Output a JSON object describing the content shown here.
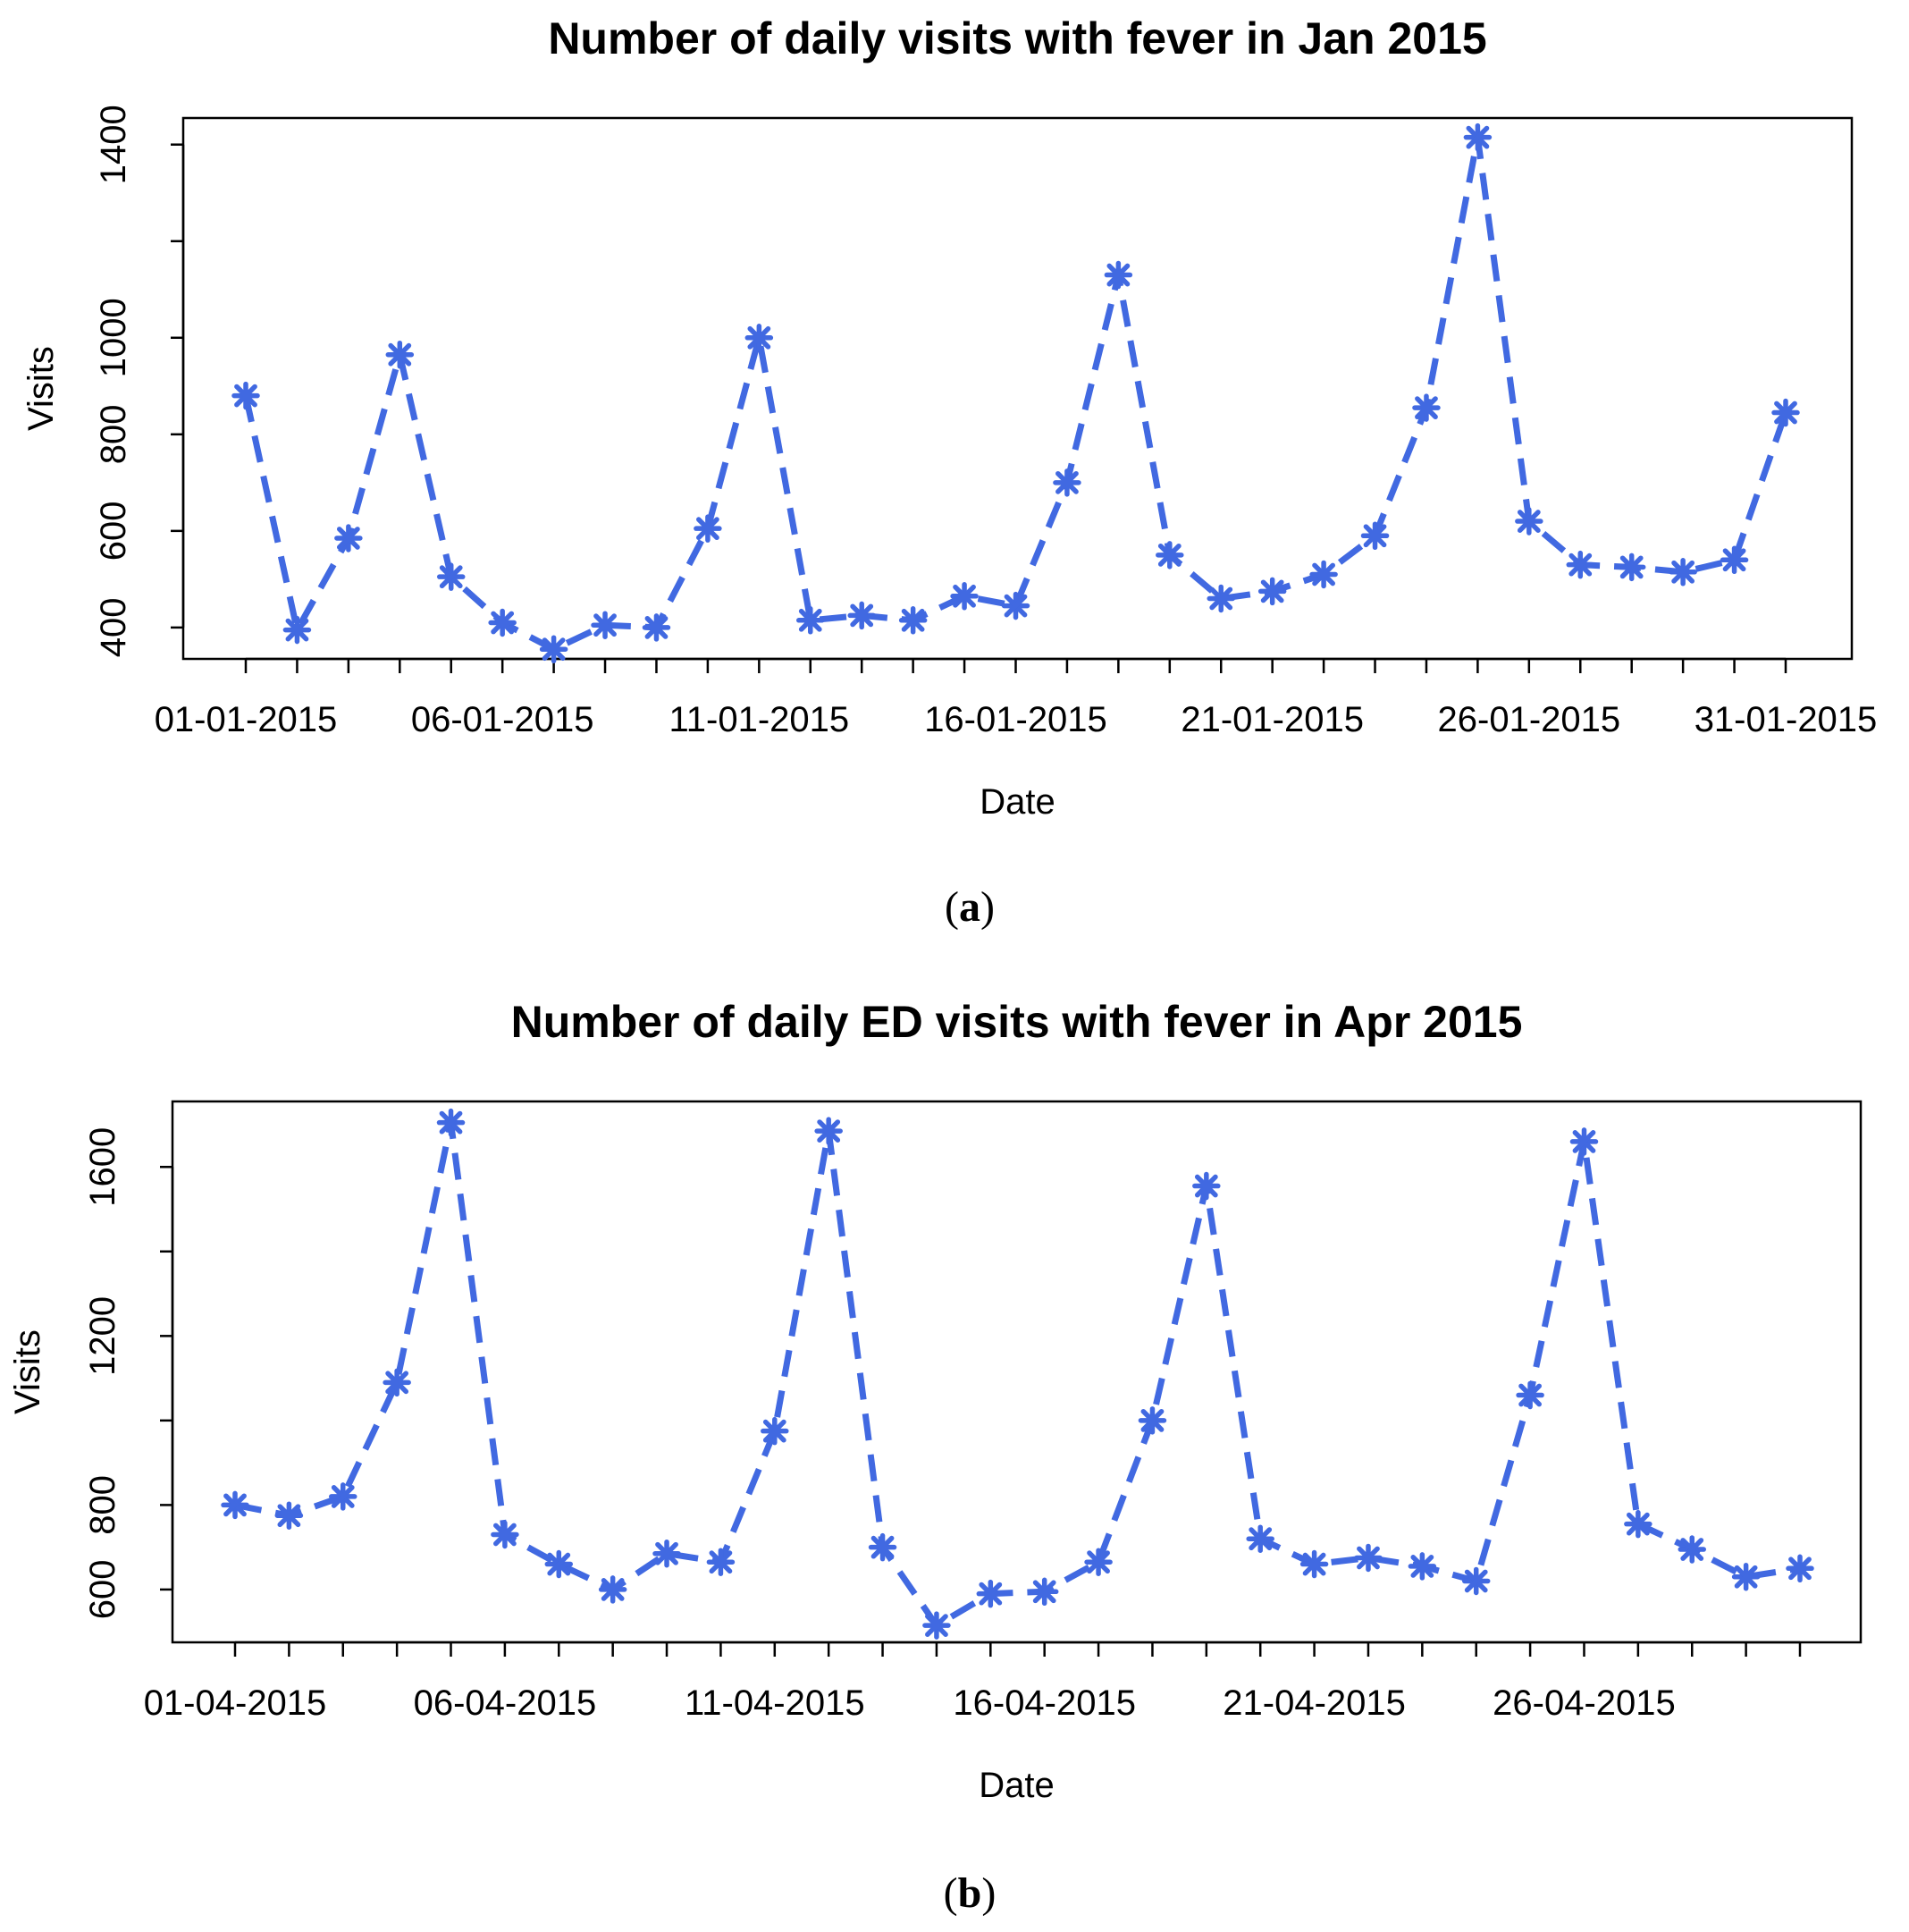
{
  "colors": {
    "series": "#4169E1",
    "axis": "#000000",
    "background": "#FFFFFF"
  },
  "charts": [
    {
      "panel_label": "a",
      "chart_data": {
        "type": "line",
        "title": "Number of daily visits with fever in Jan 2015",
        "xlabel": "Date",
        "ylabel": "Visits",
        "ylim": [
          335,
          1455
        ],
        "yticks": [
          400,
          600,
          800,
          1000,
          1200,
          1400
        ],
        "ytick_labels": [
          "400",
          "600",
          "800",
          "1000",
          "",
          "1400"
        ],
        "x_tick_count": 31,
        "x_tick_labels": [
          {
            "index": 0,
            "label": "01-01-2015"
          },
          {
            "index": 5,
            "label": "06-01-2015"
          },
          {
            "index": 10,
            "label": "11-01-2015"
          },
          {
            "index": 15,
            "label": "16-01-2015"
          },
          {
            "index": 20,
            "label": "21-01-2015"
          },
          {
            "index": 25,
            "label": "26-01-2015"
          },
          {
            "index": 30,
            "label": "31-01-2015"
          }
        ],
        "series": [
          {
            "name": "Visits",
            "marker": "asterisk",
            "line_style": "dashed",
            "values": [
              880,
              395,
              585,
              965,
              505,
              410,
              355,
              405,
              400,
              605,
              1000,
              415,
              425,
              415,
              465,
              445,
              700,
              1130,
              550,
              460,
              475,
              510,
              590,
              855,
              1415,
              620,
              530,
              525,
              515,
              540,
              845
            ]
          }
        ]
      }
    },
    {
      "panel_label": "b",
      "chart_data": {
        "type": "line",
        "title": "Number of daily ED visits with fever in Apr 2015",
        "xlabel": "Date",
        "ylabel": "Visits",
        "ylim": [
          475,
          1755
        ],
        "yticks": [
          600,
          800,
          1200,
          1600
        ],
        "ytick_labels": [
          "600",
          "800",
          "1200",
          "1600"
        ],
        "x_tick_count": 30,
        "x_tick_labels": [
          {
            "index": 0,
            "label": "01-04-2015"
          },
          {
            "index": 5,
            "label": "06-04-2015"
          },
          {
            "index": 10,
            "label": "11-04-2015"
          },
          {
            "index": 15,
            "label": "16-04-2015"
          },
          {
            "index": 20,
            "label": "21-04-2015"
          },
          {
            "index": 25,
            "label": "26-04-2015"
          }
        ],
        "series": [
          {
            "name": "Visits",
            "marker": "asterisk",
            "line_style": "dashed",
            "values": [
              800,
              775,
              820,
              1090,
              1705,
              730,
              660,
              600,
              685,
              665,
              975,
              1685,
              700,
              515,
              590,
              595,
              665,
              1000,
              1555,
              720,
              660,
              675,
              655,
              620,
              1060,
              1660,
              755,
              695,
              630,
              650
            ]
          }
        ]
      }
    }
  ]
}
